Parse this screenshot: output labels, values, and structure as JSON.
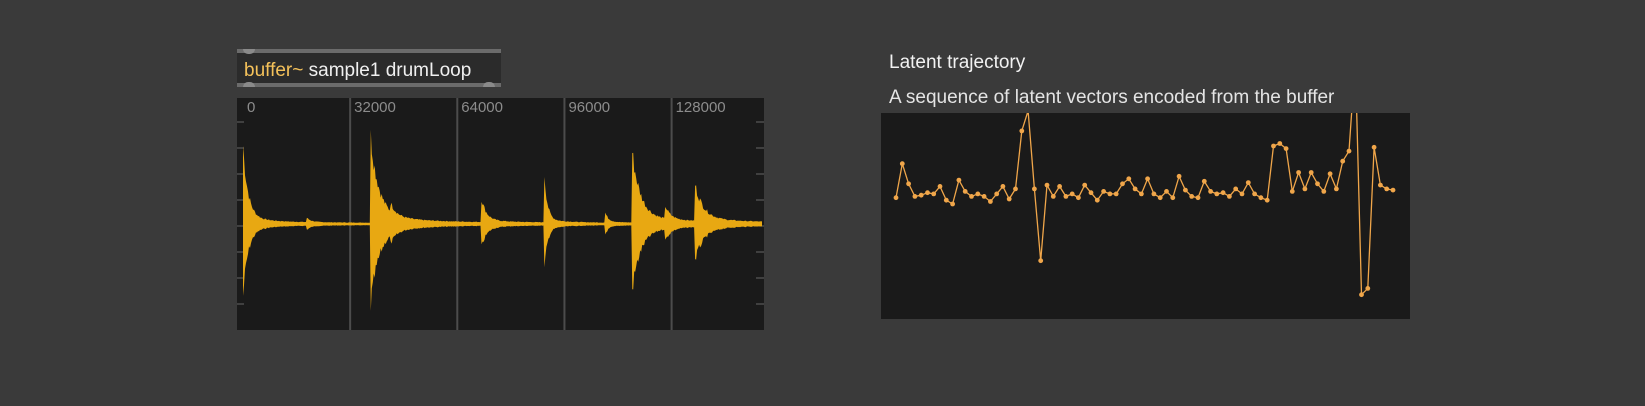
{
  "buffer_object": {
    "class_name": "buffer~",
    "args": "sample1 drumLoop"
  },
  "waveform": {
    "ruler_labels": [
      "0",
      "32000",
      "64000",
      "96000",
      "128000"
    ],
    "ruler_samples": [
      0,
      32000,
      64000,
      96000,
      128000
    ],
    "total_samples": 155000,
    "color": "#e8a812",
    "transients": [
      {
        "at": 0,
        "amp": 0.85,
        "decay": 1500
      },
      {
        "at": 19000,
        "amp": 0.05,
        "decay": 1200
      },
      {
        "at": 38000,
        "amp": 1.0,
        "decay": 2500
      },
      {
        "at": 44000,
        "amp": 0.1,
        "decay": 1500
      },
      {
        "at": 71000,
        "amp": 0.3,
        "decay": 1500
      },
      {
        "at": 90000,
        "amp": 0.55,
        "decay": 900
      },
      {
        "at": 108000,
        "amp": 0.13,
        "decay": 1000
      },
      {
        "at": 116000,
        "amp": 0.85,
        "decay": 2500
      },
      {
        "at": 126000,
        "amp": 0.15,
        "decay": 1500
      },
      {
        "at": 135000,
        "amp": 0.4,
        "decay": 2500
      }
    ]
  },
  "latent": {
    "title": "Latent trajectory",
    "subtitle": "A sequence of latent vectors encoded from the buffer",
    "line_color": "#f0a64a",
    "values": [
      0.55,
      0.82,
      0.66,
      0.56,
      0.57,
      0.59,
      0.58,
      0.64,
      0.53,
      0.5,
      0.69,
      0.6,
      0.56,
      0.58,
      0.56,
      0.52,
      0.58,
      0.64,
      0.54,
      0.62,
      1.08,
      1.24,
      0.62,
      0.05,
      0.65,
      0.56,
      0.64,
      0.56,
      0.58,
      0.55,
      0.65,
      0.59,
      0.53,
      0.6,
      0.58,
      0.58,
      0.66,
      0.7,
      0.62,
      0.58,
      0.7,
      0.58,
      0.55,
      0.6,
      0.55,
      0.72,
      0.61,
      0.56,
      0.55,
      0.68,
      0.6,
      0.58,
      0.59,
      0.56,
      0.62,
      0.58,
      0.67,
      0.58,
      0.55,
      0.53,
      0.96,
      0.98,
      0.94,
      0.6,
      0.75,
      0.62,
      0.75,
      0.66,
      0.6,
      0.74,
      0.62,
      0.84,
      0.92,
      1.65,
      -0.22,
      -0.17,
      0.95,
      0.65,
      0.62,
      0.61
    ]
  }
}
